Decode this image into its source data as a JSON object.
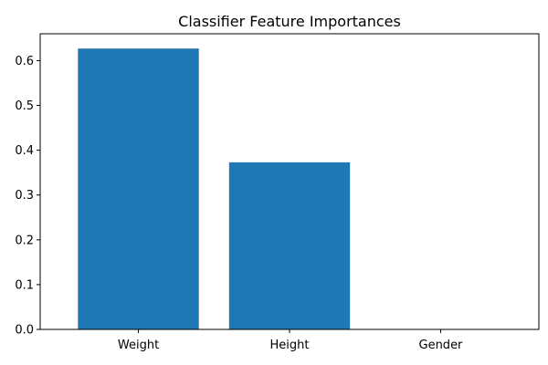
{
  "chart_data": {
    "type": "bar",
    "title": "Classifier Feature Importances",
    "xlabel": "",
    "ylabel": "",
    "categories": [
      "Weight",
      "Height",
      "Gender"
    ],
    "values": [
      0.627,
      0.373,
      0.0
    ],
    "ylim": [
      0,
      0.66
    ],
    "yticks": [
      "0.0",
      "0.1",
      "0.2",
      "0.3",
      "0.4",
      "0.5",
      "0.6"
    ],
    "bar_color": "#1f77b4",
    "grid": false,
    "legend": "none"
  }
}
